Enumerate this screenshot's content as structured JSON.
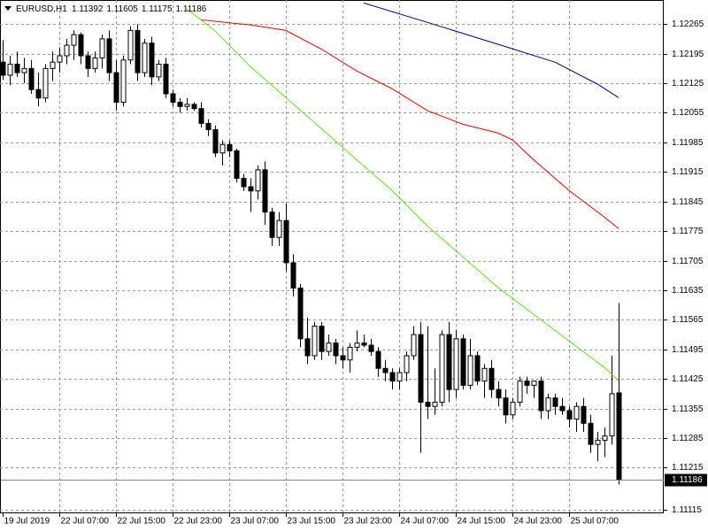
{
  "chart_data": {
    "type": "candlestick",
    "title": "EURUSD,H1",
    "categories": [
      "19 Jul 2019",
      null,
      null,
      null,
      null,
      null,
      null,
      null,
      "22 Jul 07:00",
      null,
      null,
      null,
      null,
      null,
      null,
      null,
      "22 Jul 15:00",
      null,
      null,
      null,
      null,
      null,
      null,
      null,
      "22 Jul 23:00",
      null,
      null,
      null,
      null,
      null,
      null,
      null,
      "23 Jul 07:00",
      null,
      null,
      null,
      null,
      null,
      null,
      null,
      "23 Jul 15:00",
      null,
      null,
      null,
      null,
      null,
      null,
      null,
      "23 Jul 23:00",
      null,
      null,
      null,
      null,
      null,
      null,
      null,
      "24 Jul 07:00",
      null,
      null,
      null,
      null,
      null,
      null,
      null,
      "24 Jul 15:00",
      null,
      null,
      null,
      null,
      null,
      null,
      null,
      "24 Jul 23:00",
      null,
      null,
      null,
      null,
      null,
      null,
      null,
      "25 Jul 07:00",
      null,
      null,
      null,
      null,
      null,
      null,
      null
    ],
    "open": [
      1.12175,
      1.12144,
      1.1217,
      1.1215,
      1.1216,
      1.1211,
      1.1209,
      1.1216,
      1.12175,
      1.1219,
      1.12215,
      1.1224,
      1.1219,
      1.1216,
      1.12185,
      1.1223,
      1.1215,
      1.1208,
      1.1218,
      1.1225,
      1.1215,
      1.1222,
      1.1214,
      1.1217,
      1.121,
      1.1208,
      1.1207,
      1.12075,
      1.12065,
      1.1203,
      1.12015,
      1.1196,
      1.1198,
      1.11965,
      1.119,
      1.1188,
      1.1187,
      1.1192,
      1.1182,
      1.1176,
      1.118,
      1.117,
      1.1164,
      1.1152,
      1.1148,
      1.1155,
      1.1149,
      1.1151,
      1.1148,
      1.1147,
      1.115,
      1.1151,
      1.11505,
      1.1149,
      1.1145,
      1.1144,
      1.1142,
      1.1144,
      1.1148,
      1.1153,
      1.1137,
      1.1136,
      1.1137,
      1.1153,
      1.114,
      1.1152,
      1.1141,
      1.1148,
      1.1142,
      1.1145,
      1.114,
      1.1138,
      1.1134,
      1.1137,
      1.1142,
      1.1141,
      1.1142,
      1.1135,
      1.1138,
      1.1136,
      1.1135,
      1.1133,
      1.1136,
      1.1132,
      1.1127,
      1.1128,
      1.1129,
      1.11392
    ],
    "high": [
      1.12227,
      1.1219,
      1.122,
      1.12185,
      1.1218,
      1.1215,
      1.1217,
      1.122,
      1.1221,
      1.1223,
      1.1225,
      1.12245,
      1.122,
      1.122,
      1.1224,
      1.1225,
      1.1218,
      1.1219,
      1.1226,
      1.12265,
      1.1223,
      1.12235,
      1.1218,
      1.12185,
      1.1211,
      1.1209,
      1.1209,
      1.1208,
      1.1208,
      1.1204,
      1.12025,
      1.1199,
      1.1199,
      1.1197,
      1.1191,
      1.119,
      1.1193,
      1.1194,
      1.1183,
      1.1182,
      1.1184,
      1.1172,
      1.1165,
      1.1157,
      1.1156,
      1.1156,
      1.1153,
      1.1152,
      1.115,
      1.1151,
      1.1154,
      1.1153,
      1.1152,
      1.115,
      1.1147,
      1.1145,
      1.1145,
      1.1149,
      1.1155,
      1.1156,
      1.1155,
      1.1145,
      1.1154,
      1.1156,
      1.1154,
      1.1153,
      1.1152,
      1.1149,
      1.1146,
      1.1147,
      1.1142,
      1.114,
      1.1138,
      1.1143,
      1.1143,
      1.1142,
      1.1143,
      1.1139,
      1.1139,
      1.1138,
      1.1136,
      1.1137,
      1.1138,
      1.1134,
      1.113,
      1.1131,
      1.1148,
      1.11605
    ],
    "low": [
      1.12133,
      1.1212,
      1.1214,
      1.12125,
      1.121,
      1.1207,
      1.1208,
      1.1213,
      1.1215,
      1.1217,
      1.1218,
      1.1217,
      1.1214,
      1.1215,
      1.1216,
      1.1213,
      1.1206,
      1.1207,
      1.1217,
      1.1213,
      1.1214,
      1.1212,
      1.1213,
      1.1209,
      1.1207,
      1.12055,
      1.1206,
      1.1206,
      1.1202,
      1.12,
      1.1195,
      1.1193,
      1.1195,
      1.1189,
      1.1187,
      1.1182,
      1.1185,
      1.1179,
      1.1174,
      1.1174,
      1.1168,
      1.1162,
      1.115,
      1.1146,
      1.1147,
      1.1147,
      1.1148,
      1.1146,
      1.1145,
      1.1144,
      1.1149,
      1.115,
      1.1148,
      1.1143,
      1.1142,
      1.114,
      1.114,
      1.1142,
      1.1147,
      1.1125,
      1.1133,
      1.1134,
      1.1136,
      1.1137,
      1.1138,
      1.114,
      1.114,
      1.1141,
      1.1138,
      1.1138,
      1.1136,
      1.1132,
      1.1133,
      1.1136,
      1.1139,
      1.1138,
      1.1133,
      1.1133,
      1.1134,
      1.1134,
      1.1131,
      1.113,
      1.113,
      1.1125,
      1.1123,
      1.1124,
      1.1127,
      1.11175
    ],
    "close": [
      1.12144,
      1.1217,
      1.1215,
      1.1216,
      1.1211,
      1.1209,
      1.1216,
      1.12175,
      1.1219,
      1.12215,
      1.1224,
      1.1219,
      1.1216,
      1.12185,
      1.1223,
      1.1215,
      1.1208,
      1.1218,
      1.1225,
      1.1215,
      1.1222,
      1.1214,
      1.1217,
      1.121,
      1.1208,
      1.1207,
      1.12075,
      1.12065,
      1.1203,
      1.12015,
      1.1196,
      1.1198,
      1.11965,
      1.119,
      1.1188,
      1.1187,
      1.1192,
      1.1182,
      1.1176,
      1.118,
      1.117,
      1.1164,
      1.1152,
      1.1148,
      1.1155,
      1.1149,
      1.1151,
      1.1148,
      1.1147,
      1.115,
      1.1151,
      1.11505,
      1.1149,
      1.1145,
      1.1144,
      1.1142,
      1.1144,
      1.1148,
      1.1153,
      1.1137,
      1.1136,
      1.1137,
      1.1153,
      1.114,
      1.1152,
      1.1141,
      1.1148,
      1.1142,
      1.1145,
      1.114,
      1.1138,
      1.1134,
      1.1137,
      1.1142,
      1.1141,
      1.1142,
      1.1135,
      1.1138,
      1.1136,
      1.1135,
      1.1133,
      1.1136,
      1.1132,
      1.1127,
      1.1128,
      1.1129,
      1.1139,
      1.11186
    ],
    "up_color": "#ffffff",
    "down_color": "#000000",
    "wick_color": "#000000",
    "moving_averages": [
      {
        "color": "#000080",
        "x": [
          51,
          60,
          70,
          78,
          84,
          87
        ],
        "values": [
          1.12315,
          1.12269,
          1.12217,
          1.12175,
          1.12123,
          1.12091
        ]
      },
      {
        "color": "#e00000",
        "x": [
          28,
          35,
          40,
          45,
          50,
          55,
          60,
          65,
          70,
          72,
          75,
          80,
          85,
          87
        ],
        "values": [
          1.12275,
          1.12263,
          1.1225,
          1.12206,
          1.12154,
          1.12112,
          1.1206,
          1.12028,
          1.12007,
          1.11991,
          1.11944,
          1.11871,
          1.11808,
          1.11781
        ]
      },
      {
        "color": "#66dd22",
        "x": [
          26,
          30,
          35,
          40,
          45,
          50,
          55,
          60,
          65,
          70,
          75,
          80,
          85,
          87
        ],
        "values": [
          1.12301,
          1.12249,
          1.12164,
          1.12091,
          1.12018,
          1.11944,
          1.11871,
          1.11787,
          1.11714,
          1.11641,
          1.11578,
          1.11515,
          1.11452,
          1.11421
        ]
      }
    ],
    "ylim": [
      1.11107,
      1.12322
    ],
    "yticks": [
      1.12265,
      1.12195,
      1.12125,
      1.12055,
      1.11985,
      1.11915,
      1.11845,
      1.11775,
      1.11705,
      1.11635,
      1.11565,
      1.11495,
      1.11425,
      1.11355,
      1.11285,
      1.11215,
      1.11115
    ],
    "grid": true
  }
}
